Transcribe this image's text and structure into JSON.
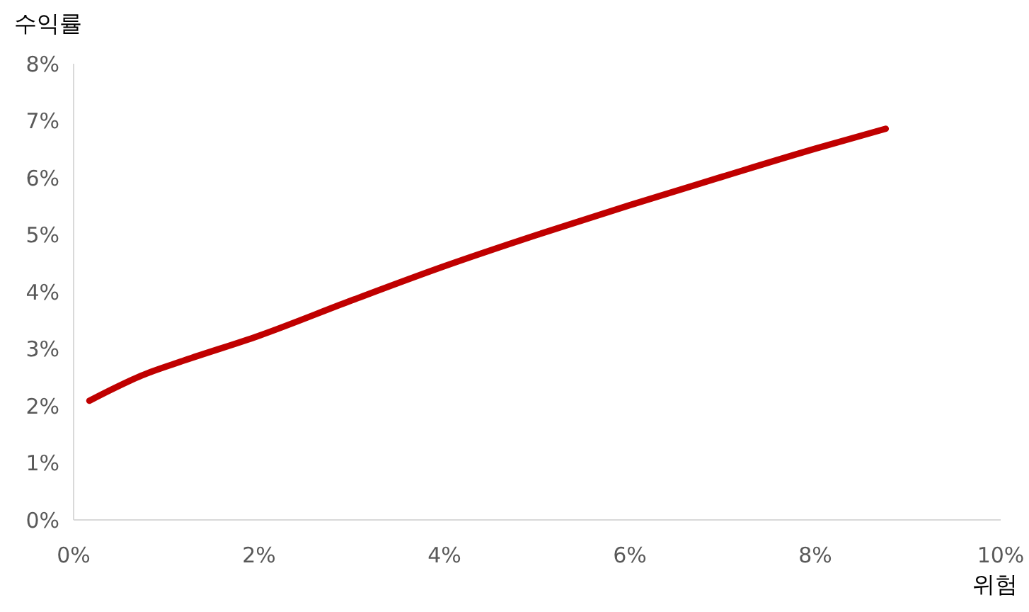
{
  "chart_data": {
    "type": "line",
    "xlabel": "위험",
    "ylabel": "수익률",
    "x": [
      0.17,
      0.4,
      0.73,
      1.2,
      2,
      3,
      4,
      5,
      6,
      7,
      8,
      8.76
    ],
    "series": [
      {
        "color": "#c00000",
        "values": [
          2.09,
          2.28,
          2.53,
          2.8,
          3.23,
          3.85,
          4.45,
          5.0,
          5.52,
          6.02,
          6.51,
          6.86
        ]
      }
    ],
    "xlim": [
      0,
      10
    ],
    "ylim": [
      0,
      8
    ],
    "xticks": [
      {
        "value": 0,
        "label": "0%"
      },
      {
        "value": 2,
        "label": "2%"
      },
      {
        "value": 4,
        "label": "4%"
      },
      {
        "value": 6,
        "label": "6%"
      },
      {
        "value": 8,
        "label": "8%"
      },
      {
        "value": 10,
        "label": "10%"
      }
    ],
    "yticks": [
      {
        "value": 0,
        "label": "0%"
      },
      {
        "value": 1,
        "label": "1%"
      },
      {
        "value": 2,
        "label": "2%"
      },
      {
        "value": 3,
        "label": "3%"
      },
      {
        "value": 4,
        "label": "4%"
      },
      {
        "value": 5,
        "label": "5%"
      },
      {
        "value": 6,
        "label": "6%"
      },
      {
        "value": 7,
        "label": "7%"
      },
      {
        "value": 8,
        "label": "8%"
      }
    ],
    "grid": false,
    "marker": "none",
    "line_style": "solid"
  }
}
